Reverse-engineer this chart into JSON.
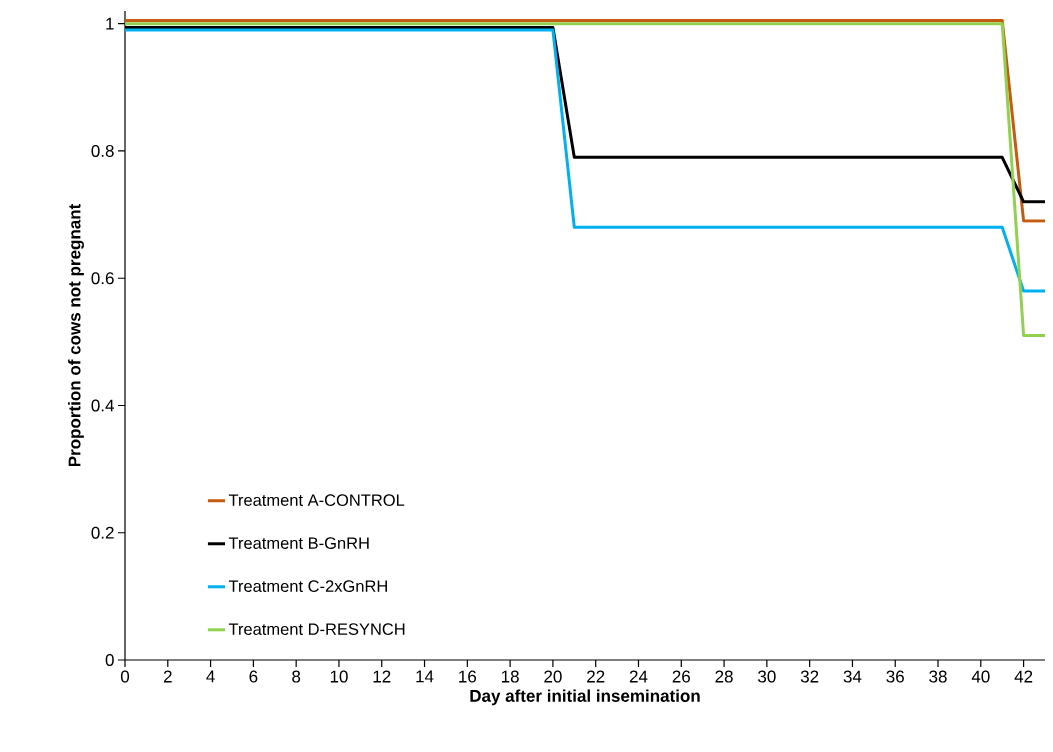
{
  "chart_data": {
    "type": "line",
    "xlabel": "Day after initial insemination",
    "ylabel": "Proportion of cows not pregnant",
    "xlim": [
      0,
      43
    ],
    "ylim": [
      0,
      1.02
    ],
    "xticks": [
      0,
      2,
      4,
      6,
      8,
      10,
      12,
      14,
      16,
      18,
      20,
      22,
      24,
      26,
      28,
      30,
      32,
      34,
      36,
      38,
      40,
      42
    ],
    "yticks": [
      0,
      0.2,
      0.4,
      0.6,
      0.8,
      1
    ],
    "grid": false,
    "legend": "bottom left",
    "marker": "none",
    "line_style": "solid",
    "series": [
      {
        "name": "Treatment A-CONTROL",
        "color": "#c55a11",
        "x": [
          0,
          20,
          21,
          41,
          42,
          43
        ],
        "values": [
          1.005,
          1.005,
          1.005,
          1.005,
          0.69,
          0.69
        ]
      },
      {
        "name": "Treatment B-GnRH",
        "color": "#000000",
        "x": [
          0,
          20,
          21,
          41,
          42,
          43
        ],
        "values": [
          0.994,
          0.994,
          0.79,
          0.79,
          0.72,
          0.72
        ]
      },
      {
        "name": "Treatment C-2xGnRH",
        "color": "#00b0f0",
        "x": [
          0,
          20,
          21,
          41,
          42,
          43
        ],
        "values": [
          0.99,
          0.99,
          0.68,
          0.68,
          0.58,
          0.58
        ]
      },
      {
        "name": "Treatment D-RESYNCH",
        "color": "#92d050",
        "x": [
          0,
          20,
          21,
          41,
          42,
          43
        ],
        "values": [
          1.0,
          1.0,
          1.0,
          1.0,
          0.51,
          0.51
        ]
      }
    ]
  }
}
